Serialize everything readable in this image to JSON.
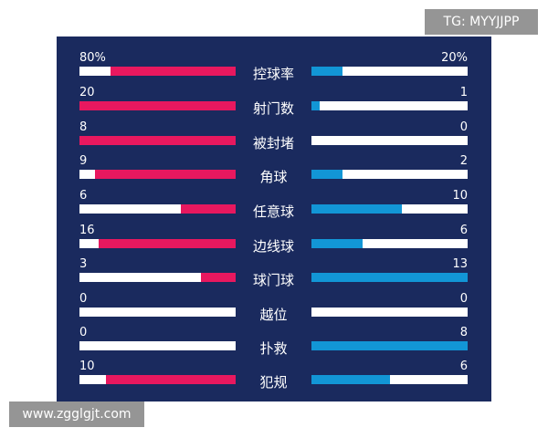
{
  "watermarks": {
    "top_right": "TG: MYYJJPP",
    "bottom_left": "www.zgglgjt.com"
  },
  "colors": {
    "background": "#1a2a5e",
    "left_team": "#e8185f",
    "right_team": "#1296d6"
  },
  "stats": [
    {
      "label": "控球率",
      "left": "80%",
      "right": "20%",
      "left_fill": 0.8,
      "right_fill": 0.2
    },
    {
      "label": "射门数",
      "left": "20",
      "right": "1",
      "left_fill": 1.0,
      "right_fill": 0.05
    },
    {
      "label": "被封堵",
      "left": "8",
      "right": "0",
      "left_fill": 1.0,
      "right_fill": 0
    },
    {
      "label": "角球",
      "left": "9",
      "right": "2",
      "left_fill": 0.9,
      "right_fill": 0.2
    },
    {
      "label": "任意球",
      "left": "6",
      "right": "10",
      "left_fill": 0.35,
      "right_fill": 0.58
    },
    {
      "label": "边线球",
      "left": "16",
      "right": "6",
      "left_fill": 0.88,
      "right_fill": 0.33
    },
    {
      "label": "球门球",
      "left": "3",
      "right": "13",
      "left_fill": 0.22,
      "right_fill": 1.0
    },
    {
      "label": "越位",
      "left": "0",
      "right": "0",
      "left_fill": 0,
      "right_fill": 0
    },
    {
      "label": "扑救",
      "left": "0",
      "right": "8",
      "left_fill": 0,
      "right_fill": 1.0
    },
    {
      "label": "犯规",
      "left": "10",
      "right": "6",
      "left_fill": 0.83,
      "right_fill": 0.5
    }
  ]
}
